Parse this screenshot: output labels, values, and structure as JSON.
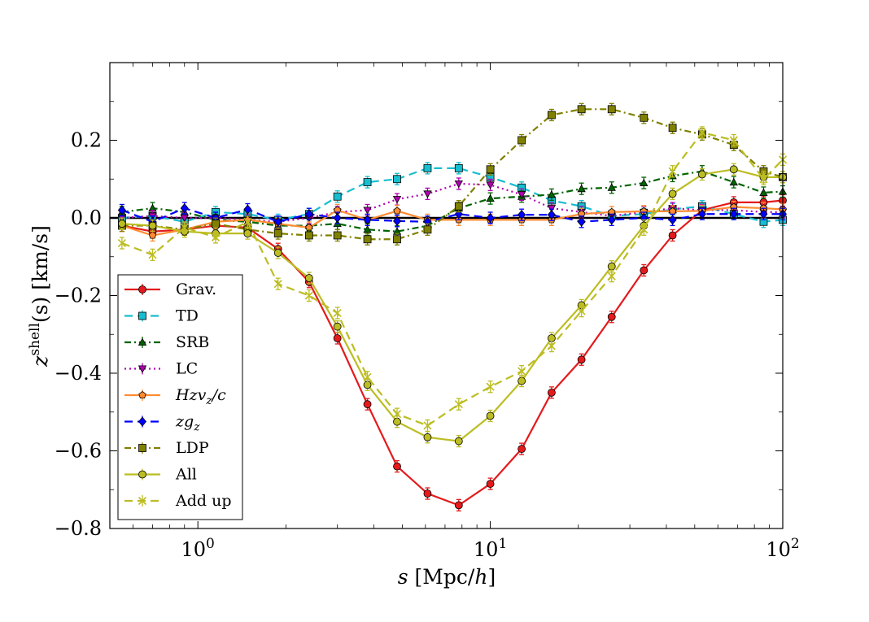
{
  "chart_data": {
    "type": "line",
    "title": "",
    "xlabel": "s [Mpc/h]",
    "ylabel": "z^shell(s) [km/s]",
    "xscale": "log",
    "xlim": [
      0.5,
      100
    ],
    "ylim": [
      -0.8,
      0.4
    ],
    "legend_position": "lower-left",
    "x_ticks": [
      {
        "value": 1,
        "base": "10",
        "exp": "0"
      },
      {
        "value": 10,
        "base": "10",
        "exp": "1"
      },
      {
        "value": 100,
        "base": "10",
        "exp": "2"
      }
    ],
    "y_ticks": [
      {
        "value": 0.2,
        "label": "0.2"
      },
      {
        "value": 0.0,
        "label": "0.0"
      },
      {
        "value": -0.2,
        "label": "−0.2"
      },
      {
        "value": -0.4,
        "label": "−0.4"
      },
      {
        "value": -0.6,
        "label": "−0.6"
      },
      {
        "value": -0.8,
        "label": "−0.8"
      }
    ],
    "x": [
      0.55,
      0.7,
      0.9,
      1.15,
      1.48,
      1.88,
      2.4,
      3.0,
      3.8,
      4.8,
      6.1,
      7.8,
      10,
      12.8,
      16.2,
      20.5,
      26,
      33.5,
      42,
      53,
      68,
      86,
      100
    ],
    "series": [
      {
        "name": "Grav.",
        "color": "#e41a1c",
        "marker": "circle",
        "dash": "solid",
        "values": [
          -0.02,
          -0.035,
          -0.03,
          -0.02,
          -0.025,
          -0.08,
          -0.165,
          -0.31,
          -0.48,
          -0.64,
          -0.71,
          -0.74,
          -0.685,
          -0.595,
          -0.45,
          -0.365,
          -0.255,
          -0.135,
          -0.045,
          0.02,
          0.04,
          0.04,
          0.045
        ]
      },
      {
        "name": "TD",
        "color": "#17becf",
        "marker": "square",
        "dash": "dashed",
        "values": [
          0.0,
          0.005,
          -0.01,
          0.015,
          0.01,
          -0.005,
          0.01,
          0.055,
          0.092,
          0.1,
          0.128,
          0.128,
          0.105,
          0.078,
          0.045,
          0.03,
          0.005,
          0.01,
          0.022,
          0.03,
          0.01,
          -0.01,
          -0.005
        ]
      },
      {
        "name": "SRB",
        "color": "#006400",
        "marker": "triangle-up",
        "dash": "dashdot",
        "values": [
          0.015,
          0.025,
          0.015,
          -0.005,
          -0.01,
          -0.02,
          -0.02,
          -0.015,
          -0.03,
          -0.035,
          -0.02,
          0.025,
          0.05,
          0.055,
          0.06,
          0.075,
          0.078,
          0.09,
          0.108,
          0.12,
          0.092,
          0.065,
          0.068
        ]
      },
      {
        "name": "LC",
        "color": "#b000b0",
        "marker": "triangle-down",
        "dash": "dotted",
        "values": [
          0.0,
          0.005,
          0.0,
          0.0,
          -0.005,
          -0.01,
          0.0,
          0.015,
          0.02,
          0.048,
          0.062,
          0.088,
          0.085,
          0.06,
          0.025,
          0.015,
          0.005,
          0.015,
          0.025,
          0.02,
          0.02,
          0.015,
          0.015
        ]
      },
      {
        "name": "Hzv_z/c",
        "color": "#ff8c33",
        "marker": "pentagon",
        "dash": "solid",
        "values": [
          -0.02,
          -0.045,
          -0.03,
          -0.01,
          -0.005,
          -0.015,
          -0.025,
          0.02,
          -0.005,
          0.018,
          -0.005,
          -0.005,
          -0.005,
          -0.005,
          -0.005,
          0.01,
          0.015,
          0.017,
          0.017,
          0.018,
          0.028,
          0.025,
          0.022
        ]
      },
      {
        "name": "zg_z",
        "color": "#0000ff",
        "marker": "diamond",
        "dash": "dashed",
        "values": [
          0.02,
          -0.01,
          0.025,
          0.0,
          0.022,
          -0.01,
          0.01,
          0.0,
          -0.005,
          -0.008,
          -0.01,
          0.01,
          0.0,
          0.008,
          0.008,
          -0.01,
          -0.005,
          0.0,
          -0.005,
          0.01,
          0.01,
          0.01,
          0.01
        ]
      },
      {
        "name": "LDP",
        "color": "#808000",
        "marker": "square",
        "dash": "dashdot",
        "values": [
          -0.02,
          -0.02,
          -0.03,
          -0.015,
          -0.03,
          -0.04,
          -0.045,
          -0.045,
          -0.055,
          -0.055,
          -0.03,
          0.03,
          0.125,
          0.2,
          0.265,
          0.28,
          0.28,
          0.258,
          0.232,
          0.215,
          0.188,
          0.12,
          0.105
        ]
      },
      {
        "name": "All",
        "color": "#bcbd22",
        "marker": "circle",
        "dash": "solid",
        "values": [
          -0.015,
          -0.02,
          -0.035,
          -0.04,
          -0.04,
          -0.09,
          -0.155,
          -0.28,
          -0.43,
          -0.525,
          -0.565,
          -0.575,
          -0.51,
          -0.42,
          -0.31,
          -0.225,
          -0.125,
          -0.02,
          0.062,
          0.112,
          0.125,
          0.105,
          0.105
        ]
      },
      {
        "name": "Add up",
        "color": "#bcbd22",
        "marker": "x",
        "dash": "dashed",
        "values": [
          -0.065,
          -0.095,
          -0.025,
          -0.05,
          -0.01,
          -0.17,
          -0.2,
          -0.245,
          -0.41,
          -0.505,
          -0.535,
          -0.48,
          -0.435,
          -0.395,
          -0.33,
          -0.24,
          -0.15,
          -0.03,
          0.12,
          0.22,
          0.2,
          0.1,
          0.15
        ]
      }
    ],
    "legend": [
      {
        "label": "Grav.",
        "math": false
      },
      {
        "label": "TD",
        "math": false
      },
      {
        "label": "SRB",
        "math": false
      },
      {
        "label": "LC",
        "math": false
      },
      {
        "label": "Hzv",
        "sub": "z",
        "tail": "/c",
        "math": true
      },
      {
        "label": "zg",
        "sub": "z",
        "tail": "",
        "math": true
      },
      {
        "label": "LDP",
        "math": false
      },
      {
        "label": "All",
        "math": false
      },
      {
        "label": "Add up",
        "math": false
      }
    ],
    "axis_text": {
      "xlabel_var": "s",
      "xlabel_unit_pre": " [Mpc/",
      "xlabel_unit_var": "h",
      "xlabel_unit_post": "]",
      "ylabel_var": "z",
      "ylabel_sup": "shell",
      "ylabel_arg": "(s)",
      "ylabel_unit": " [km/s]"
    }
  }
}
